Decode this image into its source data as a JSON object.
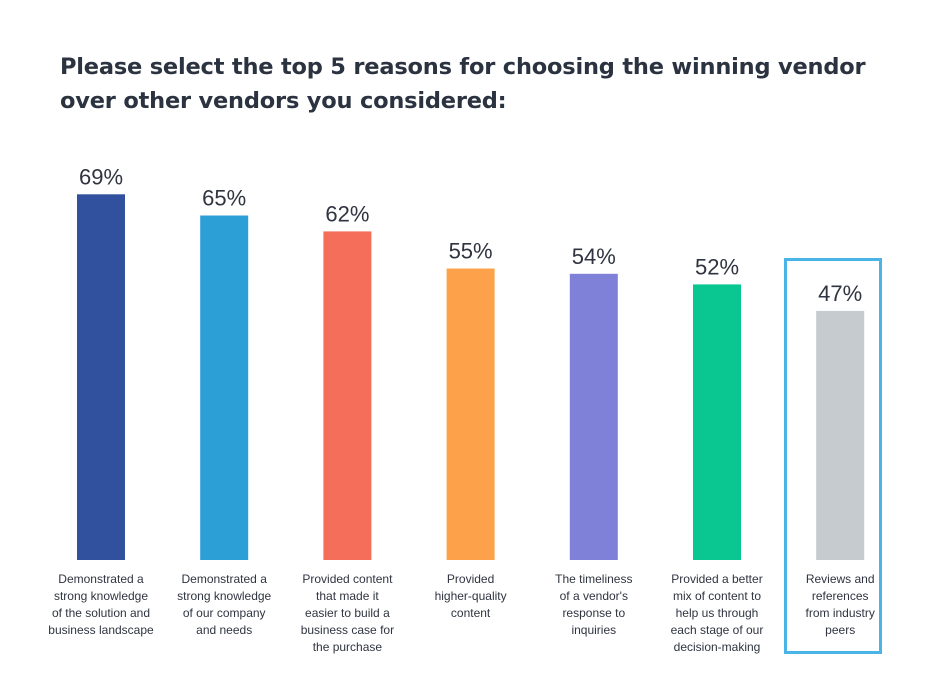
{
  "title": "Please select the top 5 reasons for choosing the winning vendor over other vendors you considered:",
  "chart_data": {
    "type": "bar",
    "title": "Please select the top 5 reasons for choosing the winning vendor over other vendors you considered:",
    "xlabel": "",
    "ylabel": "",
    "ylim": [
      0,
      69
    ],
    "grid": false,
    "value_format": "percent",
    "categories": [
      [
        "Demonstrated a",
        "strong knowledge",
        "of the solution and",
        "business landscape"
      ],
      [
        "Demonstrated a",
        "strong knowledge",
        "of our company",
        "and needs"
      ],
      [
        "Provided content",
        "that made it",
        "easier to build a",
        "business case for",
        "the purchase"
      ],
      [
        "Provided",
        "higher-quality",
        "content"
      ],
      [
        "The timeliness",
        "of a vendor's",
        "response to",
        "inquiries"
      ],
      [
        "Provided a better",
        "mix of content to",
        "help us through",
        "each stage of our",
        "decision-making"
      ],
      [
        "Reviews and",
        "references",
        "from industry",
        "peers"
      ]
    ],
    "values": [
      69,
      65,
      62,
      55,
      54,
      52,
      47
    ],
    "value_labels": [
      "69%",
      "65%",
      "62%",
      "55%",
      "54%",
      "52%",
      "47%"
    ],
    "colors": [
      "#31509e",
      "#2b9fd6",
      "#f56e5a",
      "#fda24a",
      "#7f80d8",
      "#0ac791",
      "#c5cbcf"
    ],
    "highlighted_category_index": 6,
    "highlight_color": "#4ab4e6"
  }
}
